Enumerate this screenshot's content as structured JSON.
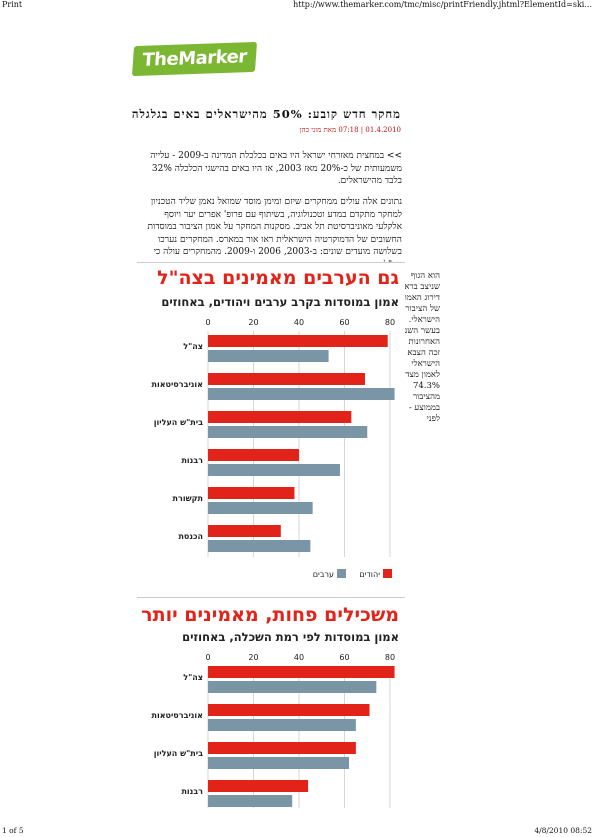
{
  "browser": {
    "title_left": "Print",
    "url": "http://www.themarker.com/tmc/misc/printFriendly.jhtml?ElementId=ski...",
    "page_counter": "1 of 5",
    "datetime": "4/8/2010 08:52"
  },
  "logo": {
    "text": "TheMarker"
  },
  "article": {
    "headline": "מחקר חדש קובע: 50% מהישראלים באים בגלגלה",
    "meta": "01.4.2010 | 07:18 מאת מוני כהן",
    "lead": ">> במחצית מאזרחי ישראל היו באים בכלכלת המדינה ב-2009 - עלייה משמעותית של כ-20% מאז 2003, אז היו באים בהישגי הכלכלה 32% בלבד מהישראלים.",
    "body": "נתונים אלה עולים ממחקרים שיזם ומימן מוסד שמואל נאמן שליד הטכניון למחקר מתקדם במדע וטכנולוגיה, בשיתוף עם פרופ' אפרים יער ויוסף אלקלעי מאוניברסיטת תל אביב. מסקנות המחקר על אמון הציבור במוסדות החשובים של הדמוקרטיה הישראלית ראו אור במארס. המחקרים נערכו בשלושה מועדים שונים: ב-2003, 2006 ו-2009. מהמחקרים עולה כי צה\"ל",
    "sidebar_text": "הוא הגוף\nשניצב בראש\nדירוג האמון\nשל הציבור\nהישראלי.\nבעשר השנים\nהאחרונות\nזכה הצבא\nהישראלי\nלאמון מצד\n74.3%\nמהציבור\nבממוצע -\nלפני"
  },
  "charts": [
    {
      "headline": "גם הערבים מאמינים בצה\"ל",
      "subtitle": "אמון במוסדות בקרב ערבים ויהודים, באחוזים",
      "legend": {
        "jews": "יהודים",
        "arabs": "ערבים"
      }
    },
    {
      "headline": "משכילים פחות, מאמינים יותר",
      "subtitle": "אמון במוסדות לפי רמת השכלה, באחוזים"
    }
  ],
  "colors": {
    "red": "#e2231a",
    "gray": "#7a95a6",
    "logo_green": "#7cb734"
  },
  "chart_data": [
    {
      "type": "bar",
      "orientation": "horizontal",
      "categories": [
        "צה\"ל",
        "אוניברסיטאות",
        "בית\"ש העליון",
        "רבנות",
        "תקשורת",
        "הכנסת"
      ],
      "xticks": [
        0,
        20,
        40,
        60,
        80
      ],
      "xlim": [
        0,
        80
      ],
      "series": [
        {
          "name": "יהודים",
          "color": "#e2231a",
          "values": [
            79,
            69,
            63,
            40,
            38,
            32
          ]
        },
        {
          "name": "ערבים",
          "color": "#7a95a6",
          "values": [
            53,
            82,
            70,
            58,
            46,
            45
          ]
        }
      ]
    },
    {
      "type": "bar",
      "orientation": "horizontal",
      "categories": [
        "צה\"ל",
        "אוניברסיטאות",
        "בית\"ש העליון",
        "רבנות"
      ],
      "xticks": [
        0,
        20,
        40,
        60,
        80
      ],
      "xlim": [
        0,
        80
      ],
      "series": [
        {
          "color": "#e2231a",
          "values": [
            82,
            71,
            65,
            44
          ]
        },
        {
          "color": "#7a95a6",
          "values": [
            74,
            65,
            62,
            37
          ]
        }
      ]
    }
  ]
}
